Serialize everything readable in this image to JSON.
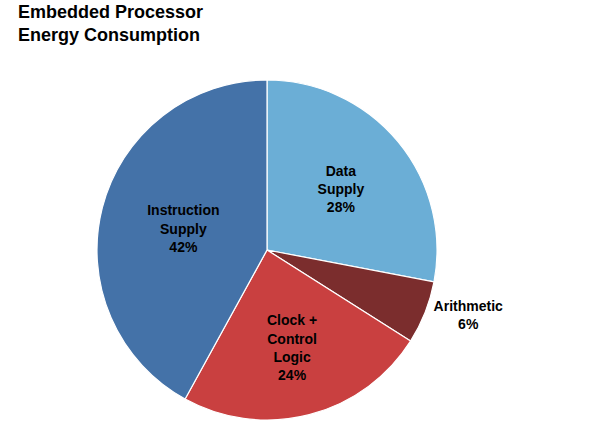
{
  "chart_data": {
    "type": "pie",
    "title": "Embedded Processor\nEnergy Consumption",
    "categories": [
      "Data\nSupply\n28%",
      "Arithmetic\n6%",
      "Clock +\nControl\nLogic\n24%",
      "Instruction\nSupply\n42%"
    ],
    "values": [
      28,
      6,
      24,
      42
    ],
    "colors": [
      "#6baed6",
      "#7b2d2d",
      "#c94040",
      "#4472a8"
    ]
  }
}
